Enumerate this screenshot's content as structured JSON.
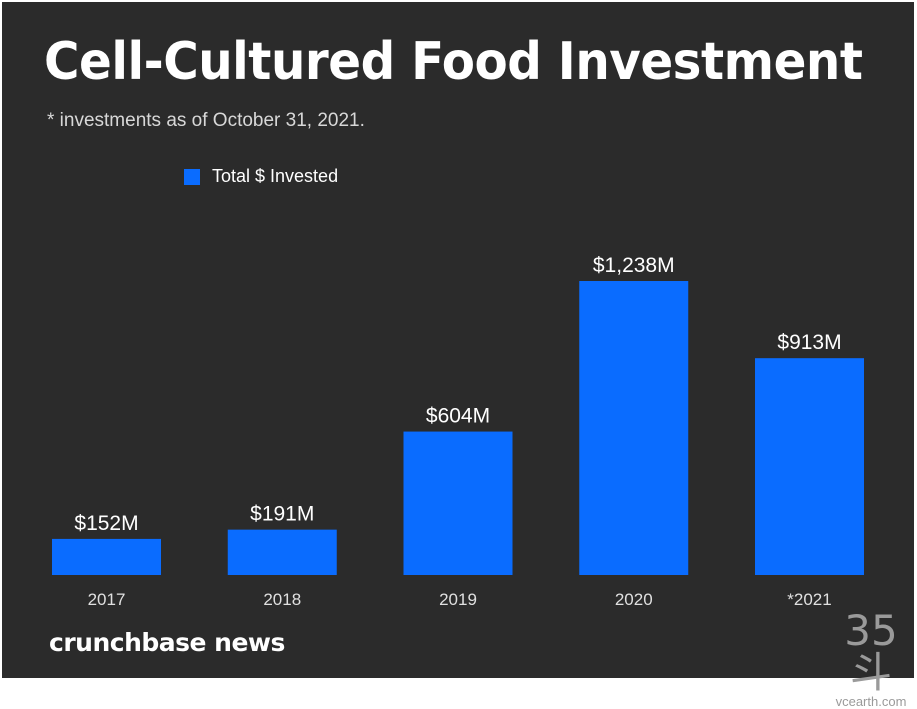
{
  "chart_data": {
    "type": "bar",
    "title": "Cell-Cultured Food Investment",
    "subtitle": "* investments as of October 31, 2021.",
    "legend": [
      "Total $ Invested"
    ],
    "legend_position": "top-left",
    "categories": [
      "2017",
      "2018",
      "2019",
      "2020",
      "*2021"
    ],
    "series": [
      {
        "name": "Total $ Invested",
        "values": [
          152,
          191,
          604,
          1238,
          913
        ],
        "unit": "$M"
      }
    ],
    "data_labels": [
      "$152M",
      "$191M",
      "$604M",
      "$1,238M",
      "$913M"
    ],
    "xlabel": "",
    "ylabel": "",
    "ylim": [
      0,
      1300
    ],
    "grid": false
  },
  "colors": {
    "bar": "#0a6cff",
    "background": "#2b2b2b"
  },
  "brand": "crunchbase news",
  "watermark": {
    "mark": "35斗",
    "site": "vcearth.com"
  }
}
